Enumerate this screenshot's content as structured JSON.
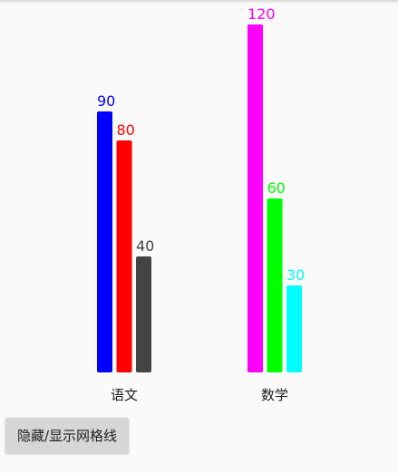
{
  "chart_data": {
    "type": "bar",
    "categories": [
      "语文",
      "数学"
    ],
    "series": [
      {
        "values": [
          90,
          120
        ],
        "colors": [
          "#0000ff",
          "#ff00ff"
        ]
      },
      {
        "values": [
          80,
          60
        ],
        "colors": [
          "#ff0000",
          "#00ff00"
        ]
      },
      {
        "values": [
          40,
          30
        ],
        "colors": [
          "#444444",
          "#00ffff"
        ]
      }
    ],
    "ylim": [
      0,
      120
    ],
    "grid": false
  },
  "button": {
    "label": "隐藏/显示网格线"
  }
}
